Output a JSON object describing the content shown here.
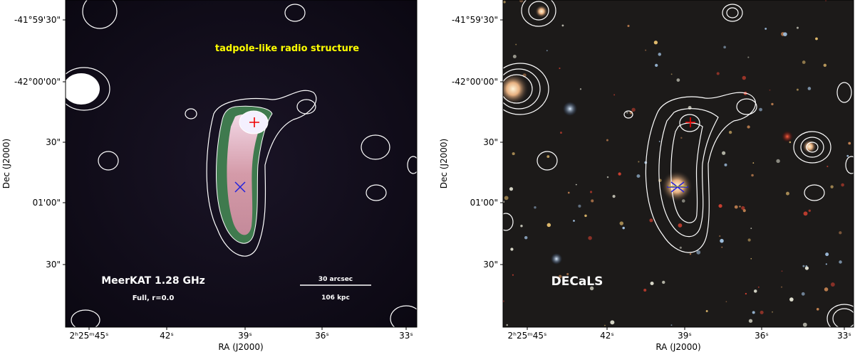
{
  "panels": [
    {
      "annotation": "tadpole-like radio structure",
      "label": "MeerKAT 1.28 GHz",
      "sublabel": "Full, r=0.0",
      "scalebar_top": "30 arcsec",
      "scalebar_bottom": "106 kpc"
    },
    {
      "label": "DECaLS"
    }
  ],
  "axes": {
    "xlabel": "RA (J2000)",
    "ylabel": "Dec (J2000)",
    "xticks": [
      "2ʰ25ᵐ45ˢ",
      "42ˢ",
      "39ˢ",
      "36ˢ",
      "33ˢ"
    ],
    "yticks": [
      "-41°59'30\"",
      "-42°00'00\"",
      "30\"",
      "01'00\"",
      "30\""
    ]
  }
}
